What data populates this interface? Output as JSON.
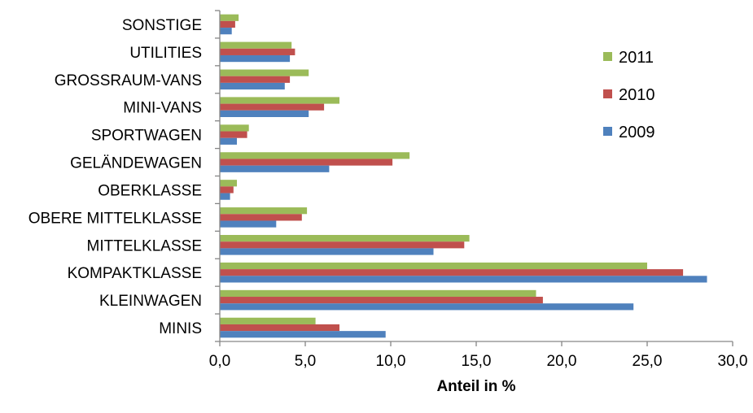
{
  "chart_data": {
    "type": "bar",
    "orientation": "horizontal",
    "categories": [
      "MINIS",
      "KLEINWAGEN",
      "KOMPAKTKLASSE",
      "MITTELKLASSE",
      "OBERE MITTELKLASSE",
      "OBERKLASSE",
      "GELÄNDEWAGEN",
      "SPORTWAGEN",
      "MINI-VANS",
      "GROSSRAUM-VANS",
      "UTILITIES",
      "SONSTIGE"
    ],
    "series": [
      {
        "name": "2009",
        "color": "#4F81BD",
        "values": [
          9.7,
          24.2,
          28.5,
          12.5,
          3.3,
          0.6,
          6.4,
          1.0,
          5.2,
          3.8,
          4.1,
          0.7
        ]
      },
      {
        "name": "2010",
        "color": "#C0504D",
        "values": [
          7.0,
          18.9,
          27.1,
          14.3,
          4.8,
          0.8,
          10.1,
          1.6,
          6.1,
          4.1,
          4.4,
          0.9
        ]
      },
      {
        "name": "2011",
        "color": "#9BBB59",
        "values": [
          5.6,
          18.5,
          25.0,
          14.6,
          5.1,
          1.0,
          11.1,
          1.7,
          7.0,
          5.2,
          4.2,
          1.1
        ]
      }
    ],
    "xlabel": "Anteil in %",
    "xlim": [
      0,
      30
    ],
    "xticks": [
      "0,0",
      "5,0",
      "10,0",
      "15,0",
      "20,0",
      "25,0",
      "30,0"
    ],
    "grid": false,
    "legend_position": "top-right",
    "legend_order": [
      "2011",
      "2010",
      "2009"
    ]
  }
}
